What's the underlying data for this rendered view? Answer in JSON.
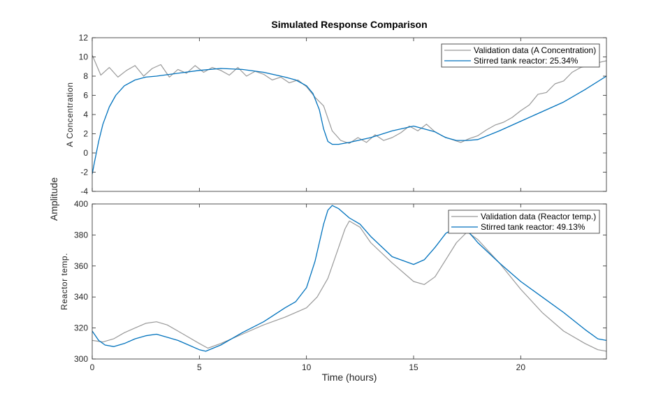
{
  "chart_data": [
    {
      "type": "line",
      "title": "Simulated Response Comparison",
      "ylabel": "A Concentration",
      "xlabel": "",
      "xlim": [
        0,
        24
      ],
      "ylim": [
        -4,
        12
      ],
      "yticks": [
        -4,
        -2,
        0,
        2,
        4,
        6,
        8,
        10,
        12
      ],
      "xticks": [
        0,
        5,
        10,
        15,
        20
      ],
      "legend": "top-right",
      "series": [
        {
          "name": "Validation data (A Concentration)",
          "color": "#999999",
          "x": [
            0,
            0.4,
            0.8,
            1.2,
            1.6,
            2,
            2.4,
            2.8,
            3.2,
            3.6,
            4,
            4.4,
            4.8,
            5.2,
            5.6,
            6,
            6.4,
            6.8,
            7.2,
            7.6,
            8,
            8.4,
            8.8,
            9.2,
            9.6,
            10,
            10.4,
            10.8,
            11.2,
            11.6,
            12,
            12.4,
            12.8,
            13.2,
            13.6,
            14,
            14.4,
            14.8,
            15.2,
            15.6,
            16,
            16.4,
            16.8,
            17.2,
            17.6,
            18,
            18.4,
            18.8,
            19.2,
            19.6,
            20,
            20.4,
            20.8,
            21.2,
            21.6,
            22,
            22.4,
            22.8,
            23.2,
            23.6,
            24
          ],
          "values": [
            10.2,
            8.1,
            8.9,
            7.9,
            8.6,
            9.1,
            8.0,
            8.8,
            9.2,
            7.9,
            8.7,
            8.3,
            9.1,
            8.4,
            8.9,
            8.6,
            8.1,
            8.9,
            8.0,
            8.5,
            8.2,
            7.6,
            7.9,
            7.3,
            7.6,
            6.9,
            5.8,
            4.9,
            2.3,
            1.3,
            1.0,
            1.6,
            1.1,
            1.9,
            1.3,
            1.6,
            2.1,
            2.8,
            2.3,
            3.0,
            2.2,
            1.7,
            1.4,
            1.1,
            1.5,
            1.8,
            2.4,
            2.9,
            3.2,
            3.7,
            4.4,
            5.0,
            6.1,
            6.3,
            7.2,
            7.5,
            8.4,
            8.9,
            9.1,
            9.4,
            9.6
          ]
        },
        {
          "name": "Stirred tank reactor: 25.34%",
          "color": "#0072BD",
          "x": [
            0,
            0.1,
            0.3,
            0.5,
            0.8,
            1.1,
            1.5,
            2,
            2.5,
            3,
            4,
            5,
            6,
            7,
            8,
            9,
            9.5,
            10,
            10.3,
            10.6,
            10.8,
            11,
            11.2,
            11.5,
            12,
            13,
            14,
            15,
            16,
            16.5,
            17,
            17.5,
            18,
            19,
            20,
            21,
            22,
            23,
            24
          ],
          "values": [
            -2.2,
            -1.0,
            1.2,
            3.0,
            4.8,
            6.0,
            7.0,
            7.6,
            7.9,
            8.0,
            8.3,
            8.6,
            8.8,
            8.7,
            8.4,
            7.9,
            7.6,
            7.0,
            6.2,
            4.5,
            2.5,
            1.2,
            0.9,
            0.9,
            1.1,
            1.6,
            2.3,
            2.8,
            2.2,
            1.6,
            1.3,
            1.3,
            1.4,
            2.3,
            3.3,
            4.3,
            5.3,
            6.6,
            8.0
          ]
        }
      ]
    },
    {
      "type": "line",
      "title": "",
      "ylabel": "Reactor temp.",
      "xlabel": "Time (hours)",
      "shared_ylabel": "Amplitude",
      "xlim": [
        0,
        24
      ],
      "ylim": [
        300,
        400
      ],
      "yticks": [
        300,
        320,
        340,
        360,
        380,
        400
      ],
      "xticks": [
        0,
        5,
        10,
        15,
        20
      ],
      "legend": "top-right",
      "series": [
        {
          "name": "Validation data (Reactor temp.)",
          "color": "#999999",
          "x": [
            0,
            0.5,
            1,
            1.5,
            2,
            2.5,
            3,
            3.5,
            4,
            4.5,
            5,
            5.4,
            6,
            7,
            8,
            9,
            9.5,
            10,
            10.5,
            11,
            11.5,
            11.8,
            12,
            12.5,
            13,
            14,
            15,
            15.5,
            16,
            16.5,
            17,
            17.5,
            18,
            19,
            20,
            21,
            22,
            23,
            23.6,
            24
          ],
          "values": [
            312,
            311,
            313,
            317,
            320,
            323,
            324,
            322,
            318,
            314,
            310,
            307,
            310,
            316,
            322,
            327,
            330,
            333,
            340,
            352,
            372,
            384,
            389,
            385,
            375,
            362,
            350,
            348,
            353,
            364,
            375,
            382,
            377,
            362,
            345,
            330,
            318,
            310,
            306,
            305
          ]
        },
        {
          "name": "Stirred tank reactor: 49.13%",
          "color": "#0072BD",
          "x": [
            0,
            0.3,
            0.6,
            1,
            1.5,
            2,
            2.5,
            3,
            3.5,
            4,
            4.5,
            5,
            5.3,
            6,
            7,
            8,
            9,
            9.5,
            10,
            10.4,
            10.8,
            11,
            11.2,
            11.5,
            12,
            12.5,
            13,
            14,
            15,
            15.5,
            16,
            16.5,
            17,
            17.5,
            18,
            19,
            20,
            21,
            22,
            23,
            23.6,
            24
          ],
          "values": [
            318,
            312,
            309,
            308,
            310,
            313,
            315,
            316,
            314,
            312,
            309,
            306,
            305,
            309,
            317,
            324,
            333,
            337,
            346,
            363,
            387,
            396,
            399,
            397,
            391,
            387,
            379,
            366,
            361,
            364,
            372,
            381,
            385,
            383,
            375,
            362,
            350,
            340,
            330,
            319,
            313,
            312
          ]
        }
      ]
    }
  ]
}
